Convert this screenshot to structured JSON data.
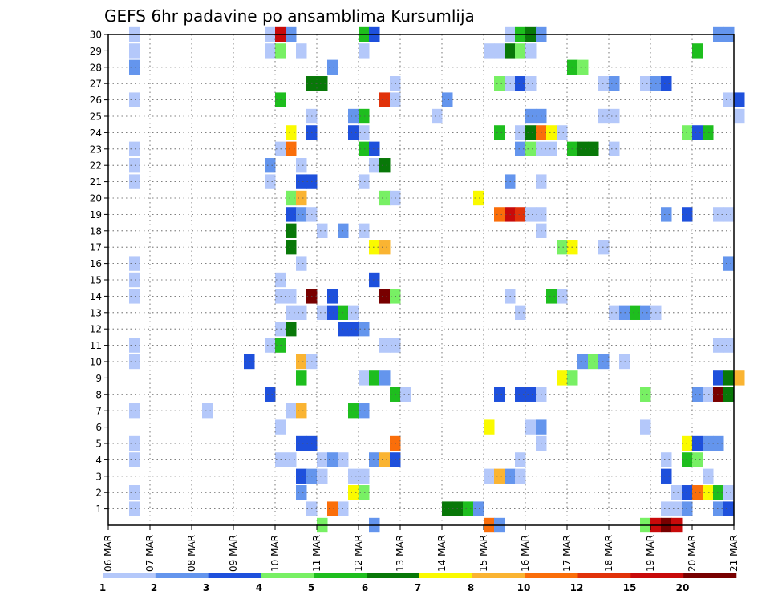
{
  "chart_data": {
    "type": "heatmap",
    "title": "GEFS 6hr padavine po ansamblima Kursumlija",
    "x_tick_labels": [
      "06 MAR",
      "07 MAR",
      "08 MAR",
      "09 MAR",
      "10 MAR",
      "11 MAR",
      "12 MAR",
      "13 MAR",
      "14 MAR",
      "15 MAR",
      "16 MAR",
      "17 MAR",
      "18 MAR",
      "19 MAR",
      "20 MAR",
      "21 MAR"
    ],
    "y_tick_labels": [
      "1",
      "2",
      "3",
      "4",
      "5",
      "6",
      "7",
      "8",
      "9",
      "10",
      "11",
      "12",
      "13",
      "14",
      "15",
      "16",
      "17",
      "18",
      "19",
      "20",
      "21",
      "22",
      "23",
      "24",
      "25",
      "26",
      "27",
      "28",
      "29",
      "30"
    ],
    "x_range_days": [
      6,
      21
    ],
    "y_range": [
      0,
      30
    ],
    "grid": true,
    "colorbar": {
      "labels": [
        "1",
        "2",
        "3",
        "4",
        "5",
        "6",
        "7",
        "8",
        "10",
        "12",
        "15",
        "20"
      ],
      "colors": [
        "#b4c8fa",
        "#6495ed",
        "#1e50dc",
        "#78f064",
        "#1ebe1e",
        "#087808",
        "#fafa00",
        "#fab432",
        "#fa6e0a",
        "#e1320a",
        "#c80a0a",
        "#780000"
      ]
    },
    "comment_cells": "each cell: [start_day_of_march, member, class_index 0-11]",
    "cells": [
      [
        6.5,
        30,
        0
      ],
      [
        6.5,
        29,
        0
      ],
      [
        6.5,
        28,
        1
      ],
      [
        6.5,
        26,
        0
      ],
      [
        6.5,
        23,
        0
      ],
      [
        6.5,
        22,
        0
      ],
      [
        6.5,
        21,
        0
      ],
      [
        6.5,
        16,
        0
      ],
      [
        6.5,
        15,
        0
      ],
      [
        6.5,
        14,
        0
      ],
      [
        6.5,
        11,
        0
      ],
      [
        6.5,
        10,
        0
      ],
      [
        6.5,
        7,
        0
      ],
      [
        6.5,
        5,
        0
      ],
      [
        6.5,
        4,
        0
      ],
      [
        6.5,
        2,
        0
      ],
      [
        6.5,
        1,
        0
      ],
      [
        8.25,
        7,
        0
      ],
      [
        9.25,
        10,
        2
      ],
      [
        9.75,
        30,
        0
      ],
      [
        9.75,
        29,
        0
      ],
      [
        9.75,
        22,
        1
      ],
      [
        9.75,
        21,
        0
      ],
      [
        9.75,
        11,
        0
      ],
      [
        9.75,
        8,
        2
      ],
      [
        10.0,
        30,
        10
      ],
      [
        10.0,
        29,
        3
      ],
      [
        10.0,
        26,
        4
      ],
      [
        10.0,
        23,
        0
      ],
      [
        10.0,
        12,
        0
      ],
      [
        10.0,
        11,
        4
      ],
      [
        10.0,
        6,
        0
      ],
      [
        10.0,
        4,
        0
      ],
      [
        10.25,
        30,
        1
      ],
      [
        10.25,
        24,
        6
      ],
      [
        10.25,
        23,
        8
      ],
      [
        10.25,
        20,
        3
      ],
      [
        10.25,
        19,
        2
      ],
      [
        10.25,
        18,
        5
      ],
      [
        10.25,
        17,
        5
      ],
      [
        10.25,
        14,
        0
      ],
      [
        10.25,
        13,
        0
      ],
      [
        10.25,
        12,
        5
      ],
      [
        10.25,
        7,
        0
      ],
      [
        10.25,
        4,
        0
      ],
      [
        10.5,
        29,
        0
      ],
      [
        10.5,
        22,
        0
      ],
      [
        10.5,
        21,
        2
      ],
      [
        10.5,
        20,
        7
      ],
      [
        10.5,
        19,
        1
      ],
      [
        10.5,
        16,
        0
      ],
      [
        10.5,
        13,
        0
      ],
      [
        10.5,
        10,
        7
      ],
      [
        10.5,
        9,
        4
      ],
      [
        10.5,
        7,
        7
      ],
      [
        10.5,
        5,
        2
      ],
      [
        10.5,
        3,
        2
      ],
      [
        10.5,
        2,
        1
      ],
      [
        10.75,
        27,
        5
      ],
      [
        10.75,
        25,
        0
      ],
      [
        10.75,
        24,
        2
      ],
      [
        10.75,
        21,
        2
      ],
      [
        10.75,
        19,
        0
      ],
      [
        10.75,
        14,
        11
      ],
      [
        10.75,
        10,
        0
      ],
      [
        10.75,
        5,
        2
      ],
      [
        10.75,
        3,
        1
      ],
      [
        10.75,
        1,
        0
      ],
      [
        11.0,
        27,
        5
      ],
      [
        11.0,
        18,
        0
      ],
      [
        11.0,
        13,
        0
      ],
      [
        11.0,
        4,
        0
      ],
      [
        11.0,
        3,
        0
      ],
      [
        11.0,
        0,
        3
      ],
      [
        11.25,
        28,
        1
      ],
      [
        11.25,
        14,
        2
      ],
      [
        11.25,
        13,
        2
      ],
      [
        11.25,
        4,
        1
      ],
      [
        11.25,
        1,
        8
      ],
      [
        11.5,
        18,
        1
      ],
      [
        11.5,
        13,
        4
      ],
      [
        11.5,
        12,
        2
      ],
      [
        11.5,
        4,
        0
      ],
      [
        11.5,
        1,
        0
      ],
      [
        11.75,
        24,
        2
      ],
      [
        11.75,
        25,
        1
      ],
      [
        11.75,
        12,
        2
      ],
      [
        11.75,
        13,
        0
      ],
      [
        11.75,
        7,
        4
      ],
      [
        11.75,
        3,
        0
      ],
      [
        11.75,
        2,
        6
      ],
      [
        12.0,
        30,
        4
      ],
      [
        12.0,
        29,
        0
      ],
      [
        12.0,
        25,
        4
      ],
      [
        12.0,
        24,
        0
      ],
      [
        12.0,
        23,
        4
      ],
      [
        12.0,
        21,
        0
      ],
      [
        12.0,
        18,
        0
      ],
      [
        12.0,
        12,
        1
      ],
      [
        12.0,
        9,
        0
      ],
      [
        12.0,
        7,
        1
      ],
      [
        12.0,
        2,
        3
      ],
      [
        12.0,
        3,
        0
      ],
      [
        12.25,
        30,
        2
      ],
      [
        12.25,
        23,
        2
      ],
      [
        12.25,
        22,
        0
      ],
      [
        12.25,
        17,
        6
      ],
      [
        12.25,
        15,
        2
      ],
      [
        12.25,
        9,
        4
      ],
      [
        12.25,
        4,
        1
      ],
      [
        12.25,
        0,
        1
      ],
      [
        12.5,
        26,
        9
      ],
      [
        12.5,
        22,
        5
      ],
      [
        12.5,
        20,
        3
      ],
      [
        12.5,
        17,
        7
      ],
      [
        12.5,
        14,
        11
      ],
      [
        12.5,
        11,
        0
      ],
      [
        12.5,
        9,
        1
      ],
      [
        12.5,
        4,
        7
      ],
      [
        12.75,
        27,
        0
      ],
      [
        12.75,
        26,
        0
      ],
      [
        12.75,
        20,
        0
      ],
      [
        12.75,
        14,
        3
      ],
      [
        12.75,
        11,
        0
      ],
      [
        12.75,
        8,
        4
      ],
      [
        12.75,
        5,
        8
      ],
      [
        12.75,
        4,
        2
      ],
      [
        13.0,
        8,
        0
      ],
      [
        13.75,
        25,
        0
      ],
      [
        14.0,
        26,
        1
      ],
      [
        14.0,
        1,
        5
      ],
      [
        14.25,
        1,
        5
      ],
      [
        14.5,
        1,
        4
      ],
      [
        14.75,
        20,
        6
      ],
      [
        14.75,
        1,
        1
      ],
      [
        15.0,
        29,
        0
      ],
      [
        15.0,
        6,
        6
      ],
      [
        15.0,
        3,
        0
      ],
      [
        15.0,
        0,
        8
      ],
      [
        15.25,
        27,
        3
      ],
      [
        15.25,
        29,
        0
      ],
      [
        15.25,
        24,
        4
      ],
      [
        15.25,
        19,
        8
      ],
      [
        15.25,
        8,
        2
      ],
      [
        15.25,
        3,
        7
      ],
      [
        15.25,
        0,
        1
      ],
      [
        15.5,
        30,
        0
      ],
      [
        15.5,
        29,
        5
      ],
      [
        15.5,
        27,
        0
      ],
      [
        15.5,
        21,
        1
      ],
      [
        15.5,
        19,
        10
      ],
      [
        15.5,
        14,
        0
      ],
      [
        15.5,
        3,
        1
      ],
      [
        15.75,
        30,
        4
      ],
      [
        15.75,
        29,
        3
      ],
      [
        15.75,
        27,
        2
      ],
      [
        15.75,
        24,
        0
      ],
      [
        15.75,
        23,
        1
      ],
      [
        15.75,
        19,
        9
      ],
      [
        15.75,
        13,
        0
      ],
      [
        15.75,
        8,
        2
      ],
      [
        15.75,
        4,
        0
      ],
      [
        15.75,
        3,
        0
      ],
      [
        16.0,
        30,
        5
      ],
      [
        16.0,
        29,
        0
      ],
      [
        16.0,
        27,
        0
      ],
      [
        16.0,
        25,
        1
      ],
      [
        16.0,
        24,
        5
      ],
      [
        16.0,
        23,
        3
      ],
      [
        16.0,
        19,
        0
      ],
      [
        16.0,
        8,
        2
      ],
      [
        16.0,
        6,
        0
      ],
      [
        16.25,
        30,
        1
      ],
      [
        16.25,
        25,
        1
      ],
      [
        16.25,
        24,
        8
      ],
      [
        16.25,
        23,
        0
      ],
      [
        16.25,
        21,
        0
      ],
      [
        16.25,
        19,
        0
      ],
      [
        16.25,
        18,
        0
      ],
      [
        16.25,
        8,
        0
      ],
      [
        16.25,
        6,
        1
      ],
      [
        16.25,
        5,
        0
      ],
      [
        16.5,
        24,
        6
      ],
      [
        16.5,
        23,
        0
      ],
      [
        16.5,
        14,
        4
      ],
      [
        16.75,
        24,
        0
      ],
      [
        16.75,
        17,
        3
      ],
      [
        16.75,
        14,
        0
      ],
      [
        16.75,
        9,
        6
      ],
      [
        17.0,
        28,
        4
      ],
      [
        17.0,
        23,
        4
      ],
      [
        17.0,
        17,
        6
      ],
      [
        17.0,
        9,
        3
      ],
      [
        17.25,
        28,
        3
      ],
      [
        17.25,
        23,
        5
      ],
      [
        17.25,
        10,
        1
      ],
      [
        17.5,
        23,
        5
      ],
      [
        17.5,
        10,
        3
      ],
      [
        17.75,
        27,
        0
      ],
      [
        17.75,
        25,
        0
      ],
      [
        17.75,
        17,
        0
      ],
      [
        17.75,
        10,
        1
      ],
      [
        18.0,
        27,
        1
      ],
      [
        18.0,
        25,
        0
      ],
      [
        18.0,
        23,
        0
      ],
      [
        18.0,
        13,
        0
      ],
      [
        18.25,
        13,
        1
      ],
      [
        18.25,
        10,
        0
      ],
      [
        18.5,
        13,
        4
      ],
      [
        18.75,
        27,
        0
      ],
      [
        18.75,
        13,
        1
      ],
      [
        18.75,
        8,
        3
      ],
      [
        18.75,
        6,
        0
      ],
      [
        18.75,
        0,
        3
      ],
      [
        19.0,
        27,
        1
      ],
      [
        19.0,
        13,
        0
      ],
      [
        19.0,
        0,
        10
      ],
      [
        19.25,
        27,
        2
      ],
      [
        19.25,
        19,
        1
      ],
      [
        19.25,
        4,
        0
      ],
      [
        19.25,
        3,
        2
      ],
      [
        19.25,
        1,
        0
      ],
      [
        19.25,
        0,
        11
      ],
      [
        19.5,
        0,
        10
      ],
      [
        19.5,
        1,
        0
      ],
      [
        19.5,
        2,
        0
      ],
      [
        19.75,
        24,
        3
      ],
      [
        19.75,
        19,
        2
      ],
      [
        19.75,
        5,
        6
      ],
      [
        19.75,
        4,
        4
      ],
      [
        19.75,
        2,
        2
      ],
      [
        19.75,
        1,
        1
      ],
      [
        20.0,
        29,
        4
      ],
      [
        20.0,
        24,
        2
      ],
      [
        20.0,
        5,
        2
      ],
      [
        20.0,
        4,
        3
      ],
      [
        20.0,
        2,
        8
      ],
      [
        20.0,
        8,
        1
      ],
      [
        20.25,
        24,
        4
      ],
      [
        20.25,
        5,
        1
      ],
      [
        20.25,
        3,
        0
      ],
      [
        20.25,
        2,
        6
      ],
      [
        20.25,
        8,
        0
      ],
      [
        20.5,
        30,
        1
      ],
      [
        20.5,
        19,
        0
      ],
      [
        20.5,
        11,
        0
      ],
      [
        20.5,
        9,
        2
      ],
      [
        20.5,
        8,
        11
      ],
      [
        20.5,
        5,
        1
      ],
      [
        20.5,
        2,
        4
      ],
      [
        20.5,
        1,
        1
      ],
      [
        20.75,
        30,
        1
      ],
      [
        20.75,
        26,
        0
      ],
      [
        20.75,
        19,
        0
      ],
      [
        20.75,
        16,
        1
      ],
      [
        20.75,
        11,
        0
      ],
      [
        20.75,
        9,
        5
      ],
      [
        20.75,
        8,
        5
      ],
      [
        20.75,
        2,
        0
      ],
      [
        20.75,
        1,
        2
      ],
      [
        21.0,
        26,
        2
      ],
      [
        21.0,
        25,
        0
      ],
      [
        21.0,
        9,
        7
      ],
      [
        10.0,
        14,
        0
      ],
      [
        10.0,
        15,
        0
      ]
    ]
  }
}
